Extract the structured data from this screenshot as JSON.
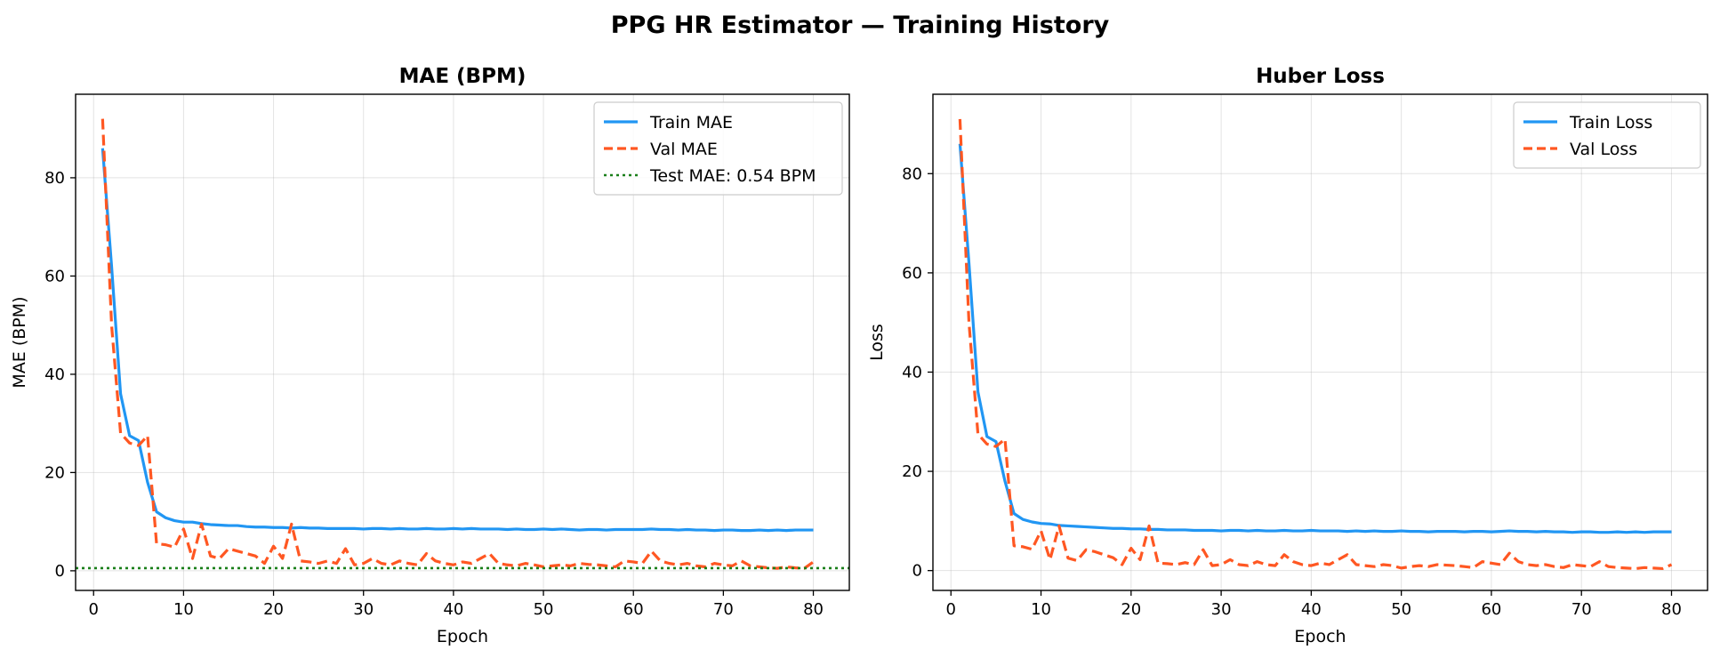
{
  "title": "PPG HR Estimator — Training History",
  "chart_data": [
    {
      "type": "line",
      "title": "MAE (BPM)",
      "xlabel": "Epoch",
      "ylabel": "MAE (BPM)",
      "xlim": [
        -2,
        84
      ],
      "ylim": [
        -4,
        97
      ],
      "xticks": [
        0,
        10,
        20,
        30,
        40,
        50,
        60,
        70,
        80
      ],
      "yticks": [
        0,
        20,
        40,
        60,
        80
      ],
      "grid": true,
      "legend_position": "top-right",
      "x": [
        1,
        2,
        3,
        4,
        5,
        6,
        7,
        8,
        9,
        10,
        11,
        12,
        13,
        14,
        15,
        16,
        17,
        18,
        19,
        20,
        21,
        22,
        23,
        24,
        25,
        26,
        27,
        28,
        29,
        30,
        31,
        32,
        33,
        34,
        35,
        36,
        37,
        38,
        39,
        40,
        41,
        42,
        43,
        44,
        45,
        46,
        47,
        48,
        49,
        50,
        51,
        52,
        53,
        54,
        55,
        56,
        57,
        58,
        59,
        60,
        61,
        62,
        63,
        64,
        65,
        66,
        67,
        68,
        69,
        70,
        71,
        72,
        73,
        74,
        75,
        76,
        77,
        78,
        79,
        80
      ],
      "series": [
        {
          "name": "Train MAE",
          "color": "#2196F3",
          "style": "solid",
          "values": [
            86,
            62,
            36,
            27.5,
            26.5,
            18,
            12,
            10.8,
            10.2,
            9.9,
            9.9,
            9.6,
            9.4,
            9.3,
            9.2,
            9.2,
            9.0,
            8.9,
            8.9,
            8.8,
            8.8,
            8.7,
            8.8,
            8.7,
            8.7,
            8.6,
            8.6,
            8.6,
            8.6,
            8.5,
            8.6,
            8.6,
            8.5,
            8.6,
            8.5,
            8.5,
            8.6,
            8.5,
            8.5,
            8.6,
            8.5,
            8.6,
            8.5,
            8.5,
            8.5,
            8.4,
            8.5,
            8.4,
            8.4,
            8.5,
            8.4,
            8.5,
            8.4,
            8.3,
            8.4,
            8.4,
            8.3,
            8.4,
            8.4,
            8.4,
            8.4,
            8.5,
            8.4,
            8.4,
            8.3,
            8.4,
            8.3,
            8.3,
            8.2,
            8.3,
            8.3,
            8.2,
            8.2,
            8.3,
            8.2,
            8.3,
            8.2,
            8.3,
            8.3,
            8.3
          ]
        },
        {
          "name": "Val MAE",
          "color": "#FF5722",
          "style": "dashed",
          "values": [
            92,
            50,
            28,
            26,
            25.5,
            27.5,
            5.5,
            5.3,
            4.8,
            8.5,
            2.5,
            9.5,
            3.0,
            2.5,
            4.5,
            4.0,
            3.5,
            3.0,
            1.5,
            5.0,
            2.5,
            9.5,
            2.0,
            1.8,
            1.5,
            2.0,
            1.5,
            4.5,
            1.2,
            1.5,
            2.5,
            1.5,
            1.2,
            2.0,
            1.5,
            1.2,
            3.5,
            2.0,
            1.5,
            1.2,
            1.8,
            1.5,
            2.5,
            3.5,
            1.5,
            1.2,
            1.0,
            1.5,
            1.2,
            0.8,
            1.0,
            1.2,
            1.0,
            1.5,
            1.3,
            1.2,
            1.0,
            0.8,
            2.0,
            1.8,
            1.5,
            4.0,
            2.0,
            1.5,
            1.2,
            1.5,
            1.0,
            0.8,
            1.5,
            1.2,
            1.0,
            2.0,
            1.0,
            0.8,
            0.6,
            0.5,
            0.8,
            0.6,
            0.5,
            1.8
          ]
        },
        {
          "name": "Test MAE: 0.54 BPM",
          "color": "#1A7F1A",
          "style": "dotted",
          "hline": 0.54
        }
      ]
    },
    {
      "type": "line",
      "title": "Huber Loss",
      "xlabel": "Epoch",
      "ylabel": "Loss",
      "xlim": [
        -2,
        84
      ],
      "ylim": [
        -4,
        96
      ],
      "xticks": [
        0,
        10,
        20,
        30,
        40,
        50,
        60,
        70,
        80
      ],
      "yticks": [
        0,
        20,
        40,
        60,
        80
      ],
      "grid": true,
      "legend_position": "top-right",
      "x": [
        1,
        2,
        3,
        4,
        5,
        6,
        7,
        8,
        9,
        10,
        11,
        12,
        13,
        14,
        15,
        16,
        17,
        18,
        19,
        20,
        21,
        22,
        23,
        24,
        25,
        26,
        27,
        28,
        29,
        30,
        31,
        32,
        33,
        34,
        35,
        36,
        37,
        38,
        39,
        40,
        41,
        42,
        43,
        44,
        45,
        46,
        47,
        48,
        49,
        50,
        51,
        52,
        53,
        54,
        55,
        56,
        57,
        58,
        59,
        60,
        61,
        62,
        63,
        64,
        65,
        66,
        67,
        68,
        69,
        70,
        71,
        72,
        73,
        74,
        75,
        76,
        77,
        78,
        79,
        80
      ],
      "series": [
        {
          "name": "Train Loss",
          "color": "#2196F3",
          "style": "solid",
          "values": [
            86,
            62,
            36,
            27,
            26,
            18,
            11.5,
            10.3,
            9.8,
            9.5,
            9.4,
            9.1,
            9.0,
            8.9,
            8.8,
            8.7,
            8.6,
            8.5,
            8.5,
            8.4,
            8.4,
            8.3,
            8.3,
            8.2,
            8.2,
            8.2,
            8.1,
            8.1,
            8.1,
            8.0,
            8.1,
            8.1,
            8.0,
            8.1,
            8.0,
            8.0,
            8.1,
            8.0,
            8.0,
            8.1,
            8.0,
            8.0,
            8.0,
            7.9,
            8.0,
            7.9,
            8.0,
            7.9,
            7.9,
            8.0,
            7.9,
            7.9,
            7.8,
            7.9,
            7.9,
            7.9,
            7.8,
            7.9,
            7.9,
            7.8,
            7.9,
            8.0,
            7.9,
            7.9,
            7.8,
            7.9,
            7.8,
            7.8,
            7.7,
            7.8,
            7.8,
            7.7,
            7.7,
            7.8,
            7.7,
            7.8,
            7.7,
            7.8,
            7.8,
            7.8
          ]
        },
        {
          "name": "Val Loss",
          "color": "#FF5722",
          "style": "dashed",
          "values": [
            91,
            50,
            27.5,
            25.5,
            25,
            26.5,
            5.0,
            4.8,
            4.3,
            8.0,
            2.2,
            9.0,
            2.5,
            2.0,
            4.2,
            3.8,
            3.2,
            2.6,
            1.2,
            4.5,
            2.2,
            9.0,
            1.5,
            1.4,
            1.2,
            1.6,
            1.2,
            4.2,
            1.0,
            1.2,
            2.2,
            1.2,
            1.0,
            1.8,
            1.2,
            1.0,
            3.2,
            1.8,
            1.2,
            1.0,
            1.5,
            1.2,
            2.2,
            3.2,
            1.2,
            1.0,
            0.8,
            1.2,
            1.0,
            0.5,
            0.8,
            1.0,
            0.8,
            1.2,
            1.1,
            1.0,
            0.8,
            0.6,
            1.8,
            1.5,
            1.2,
            3.5,
            1.8,
            1.2,
            1.0,
            1.2,
            0.8,
            0.6,
            1.2,
            1.0,
            0.8,
            1.8,
            0.8,
            0.6,
            0.5,
            0.4,
            0.6,
            0.5,
            0.4,
            1.2
          ]
        }
      ]
    }
  ]
}
